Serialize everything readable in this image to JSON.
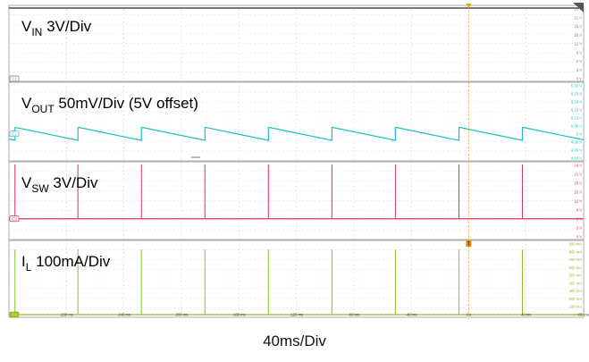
{
  "chart_data": {
    "type": "line",
    "timebase": "40ms/Div",
    "x_unit": "ms",
    "x_ticks": [
      "-280 ms",
      "-240 ms",
      "-200 ms",
      "-160 ms",
      "-120 ms",
      "-80 ms",
      "-40 ms",
      "0 s",
      "40 ms",
      "80 ms"
    ],
    "xlim": [
      -320,
      80
    ],
    "trigger_time_ms": 0,
    "grid": true,
    "channels": [
      {
        "id": "C1",
        "title_main": "V",
        "title_sub": "IN",
        "title_rest": " 3V/Div",
        "color": "#7f7f7f",
        "y_ticks": [
          "24 V",
          "21 V",
          "18 V",
          "15 V",
          "12 V",
          "9 V",
          "6 V",
          "3 V",
          "0 V"
        ],
        "ylim": [
          0,
          24
        ],
        "waveform": "dc",
        "level": 24
      },
      {
        "id": "C2",
        "title_main": "V",
        "title_sub": "OUT",
        "title_rest": " 50mV/Div (5V offset)",
        "color": "#1fbfbf",
        "y_ticks": [
          "5.30 V",
          "5.25 V",
          "5.20 V",
          "5.15 V",
          "5.10 V",
          "5.05 V",
          "5 V",
          "4.95 V",
          "4.90 V",
          "4.85 V"
        ],
        "ylim": [
          4.85,
          5.3
        ],
        "waveform": "sawtooth",
        "high": 5.04,
        "low": 4.96,
        "edge_times_ms": [
          -315.8,
          -272,
          -227.8,
          -183.6,
          -139.4,
          -95.2,
          -51,
          -6.8,
          37.4,
          81.6
        ]
      },
      {
        "id": "C3",
        "title_main": "V",
        "title_sub": "SW",
        "title_rest": " 3V/Div",
        "color": "#d9335f",
        "y_ticks": [
          "24 V",
          "21 V",
          "18 V",
          "15 V",
          "12 V",
          "9 V",
          "6 V",
          "3 V",
          "0 V"
        ],
        "ylim": [
          0,
          24
        ],
        "waveform": "pulses",
        "baseline": 6,
        "peak": 24,
        "pulse_times_ms": [
          -315.8,
          -272,
          -227.8,
          -183.6,
          -139.4,
          -95.2,
          -51,
          -6.8,
          37.4,
          81.6
        ]
      },
      {
        "id": "C4",
        "title_main": "I",
        "title_sub": "L",
        "title_rest": " 100mA/Div",
        "color": "#8fbf2a",
        "y_ticks": [
          "900 mA",
          "800 mA",
          "700 mA",
          "600 mA",
          "500 mA",
          "400 mA",
          "300 mA",
          "200 mA",
          "100 mA",
          "0 mA"
        ],
        "ylim": [
          0,
          900
        ],
        "waveform": "pulses",
        "baseline": 0,
        "peak": 820,
        "pulse_times_ms": [
          -315.8,
          -272,
          -227.8,
          -183.6,
          -139.4,
          -95.2,
          -51,
          -6.8,
          37.4,
          81.6
        ]
      }
    ]
  }
}
